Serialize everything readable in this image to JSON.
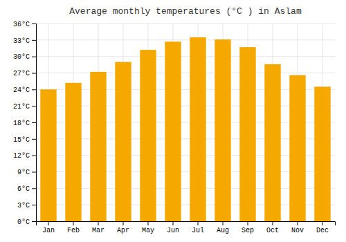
{
  "chart_data": {
    "type": "bar",
    "title": "Average monthly temperatures (°C ) in Aslam",
    "categories": [
      "Jan",
      "Feb",
      "Mar",
      "Apr",
      "May",
      "Jun",
      "Jul",
      "Aug",
      "Sep",
      "Oct",
      "Nov",
      "Dec"
    ],
    "values": [
      24.0,
      25.2,
      27.2,
      29.0,
      31.2,
      32.7,
      33.5,
      33.1,
      31.7,
      28.6,
      26.6,
      24.5
    ],
    "color": "#F5A800",
    "ylim": [
      0,
      36
    ],
    "yticks": [
      {
        "value": 0,
        "label": "0°C"
      },
      {
        "value": 3,
        "label": "3°C"
      },
      {
        "value": 6,
        "label": "6°C"
      },
      {
        "value": 9,
        "label": "9°C"
      },
      {
        "value": 12,
        "label": "12°C"
      },
      {
        "value": 15,
        "label": "15°C"
      },
      {
        "value": 18,
        "label": "18°C"
      },
      {
        "value": 21,
        "label": "21°C"
      },
      {
        "value": 24,
        "label": "24°C"
      },
      {
        "value": 27,
        "label": "27°C"
      },
      {
        "value": 30,
        "label": "30°C"
      },
      {
        "value": 33,
        "label": "33°C"
      },
      {
        "value": 36,
        "label": "36°C"
      }
    ],
    "grid": true
  }
}
